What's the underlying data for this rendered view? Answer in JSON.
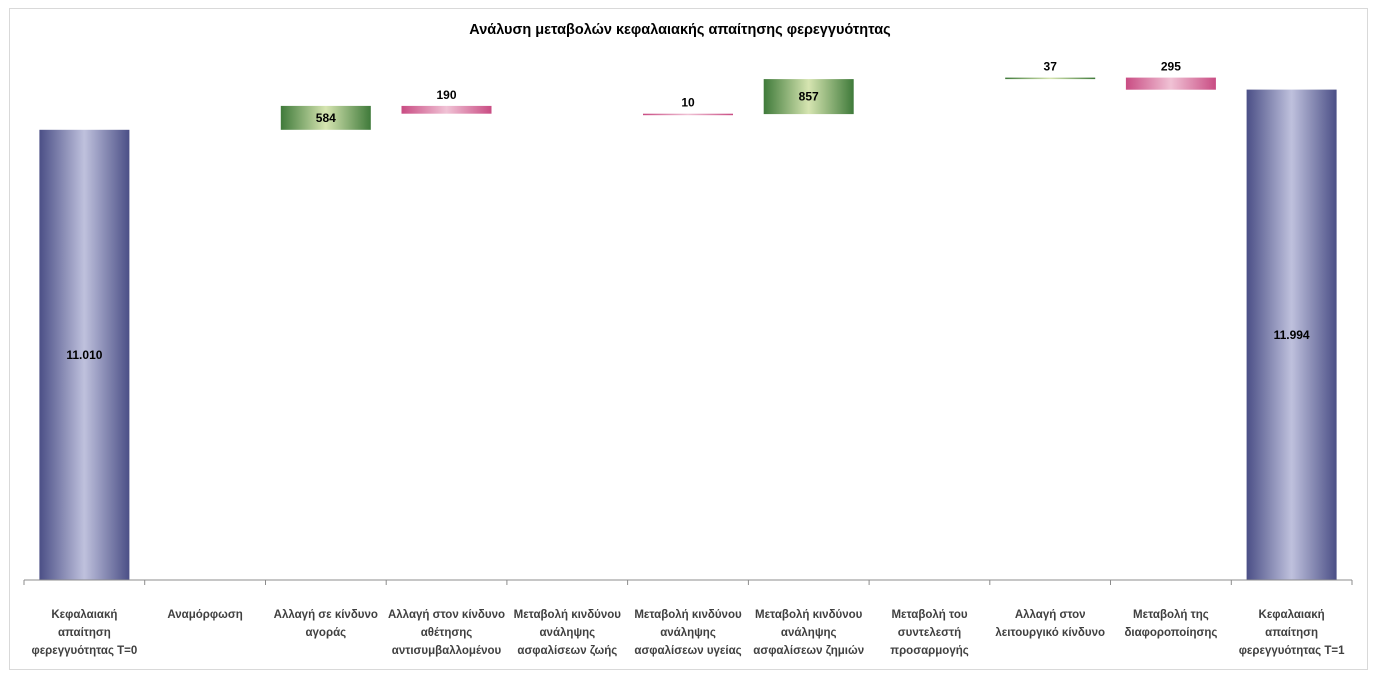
{
  "chart_data": {
    "type": "bar",
    "subtype": "waterfall",
    "title": "Ανάλυση μεταβολών κεφαλαιακής απαίτησης φερεγγυότητας",
    "xlabel": "",
    "ylabel": "",
    "grid": false,
    "legend": "none",
    "categories": [
      "Κεφαλαιακή απαίτηση φερεγγυότητας Τ=0",
      "Αναμόρφωση",
      "Αλλαγή σε κίνδυνο αγοράς",
      "Αλλαγή στον κίνδυνο αθέτησης αντισυμβαλλομένου",
      "Μεταβολή κινδύνου ανάληψης ασφαλίσεων ζωής",
      "Μεταβολή κινδύνου ανάληψης ασφαλίσεων υγείας",
      "Μεταβολή κινδύνου ανάληψης ασφαλίσεων ζημιών",
      "Μεταβολή του συντελεστή προσαρμογής",
      "Αλλαγή στον λειτουργικό κίνδυνο",
      "Μεταβολή της διαφοροποίησης",
      "Κεφαλαιακή απαίτηση φερεγγυότητας Τ=1"
    ],
    "category_lines": [
      [
        "Κεφαλαιακή",
        "απαίτηση",
        "φερεγγυότητας Τ=0"
      ],
      [
        "Αναμόρφωση"
      ],
      [
        "Αλλαγή σε κίνδυνο",
        "αγοράς"
      ],
      [
        "Αλλαγή στον κίνδυνο",
        "αθέτησης",
        "αντισυμβαλλομένου"
      ],
      [
        "Μεταβολή κινδύνου",
        "ανάληψης",
        "ασφαλίσεων ζωής"
      ],
      [
        "Μεταβολή κινδύνου",
        "ανάληψης",
        "ασφαλίσεων υγείας"
      ],
      [
        "Μεταβολή κινδύνου",
        "ανάληψης",
        "ασφαλίσεων ζημιών"
      ],
      [
        "Μεταβολή του",
        "συντελεστή",
        "προσαρμογής"
      ],
      [
        "Αλλαγή στον",
        "λειτουργικό κίνδυνο"
      ],
      [
        "Μεταβολή της",
        "διαφοροποίησης"
      ],
      [
        "Κεφαλαιακή",
        "απαίτηση",
        "φερεγγυότητας Τ=1"
      ]
    ],
    "values": [
      11010,
      0,
      584,
      -190,
      0,
      -10,
      857,
      0,
      37,
      -295,
      11994
    ],
    "labels": [
      "11.010",
      "",
      "584",
      "190",
      "",
      "10",
      "857",
      "",
      "37",
      "295",
      "11.994"
    ],
    "kinds": [
      "total",
      "delta",
      "increase",
      "decrease",
      "delta",
      "decrease",
      "increase",
      "delta",
      "increase",
      "decrease",
      "total"
    ],
    "ylim": [
      0,
      13500
    ],
    "colors": {
      "total_edge": "#4b4f86",
      "total_center": "#bfc1dd",
      "increase_edge": "#3f7a3a",
      "increase_center": "#d6e5b1",
      "decrease_edge": "#c94c83",
      "decrease_center": "#f0c2d5",
      "axis": "#8c8c8c"
    }
  }
}
